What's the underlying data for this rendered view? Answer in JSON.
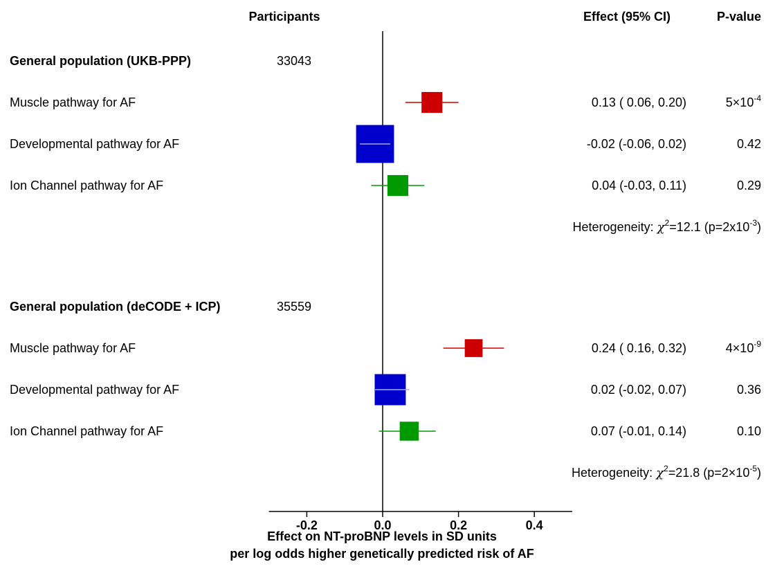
{
  "chart_data": {
    "type": "forest",
    "header": {
      "participants": "Participants",
      "effect": "Effect (95% CI)",
      "pvalue": "P-value"
    },
    "groups": [
      {
        "name": "General population (UKB-PPP)",
        "participants": "33043",
        "rows": [
          {
            "label": "Muscle pathway for AF",
            "estimate": 0.13,
            "lower": 0.06,
            "upper": 0.2,
            "effect_text": "0.13 ( 0.06, 0.20)",
            "p_base": "5×10",
            "p_exp": "-4",
            "color": "#cc0000",
            "box": 0.055
          },
          {
            "label": "Developmental pathway for AF",
            "estimate": -0.02,
            "lower": -0.06,
            "upper": 0.02,
            "effect_text": "-0.02 (-0.06, 0.02)",
            "p_base": "0.42",
            "p_exp": "",
            "color": "#0000cc",
            "box": 0.1
          },
          {
            "label": "Ion Channel pathway for AF",
            "estimate": 0.04,
            "lower": -0.03,
            "upper": 0.11,
            "effect_text": "0.04 (-0.03, 0.11)",
            "p_base": "0.29",
            "p_exp": "",
            "color": "#009900",
            "box": 0.055
          }
        ],
        "heterogeneity": {
          "prefix": "Heterogeneity: ",
          "chi": "χ",
          "sup": "2",
          "stat": "=12.1 (p=2x10",
          "p_exp": "-3",
          "suffix": ")"
        }
      },
      {
        "name": "General population (deCODE + ICP)",
        "participants": "35559",
        "rows": [
          {
            "label": "Muscle pathway for AF",
            "estimate": 0.24,
            "lower": 0.16,
            "upper": 0.32,
            "effect_text": "0.24 ( 0.16, 0.32)",
            "p_base": "4×10",
            "p_exp": "-9",
            "color": "#cc0000",
            "box": 0.047
          },
          {
            "label": "Developmental pathway for AF",
            "estimate": 0.02,
            "lower": -0.02,
            "upper": 0.07,
            "effect_text": "0.02 (-0.02, 0.07)",
            "p_base": "0.36",
            "p_exp": "",
            "color": "#0000cc",
            "box": 0.082
          },
          {
            "label": "Ion Channel pathway for AF",
            "estimate": 0.07,
            "lower": -0.01,
            "upper": 0.14,
            "effect_text": "0.07 (-0.01, 0.14)",
            "p_base": "0.10",
            "p_exp": "",
            "color": "#009900",
            "box": 0.05
          }
        ],
        "heterogeneity": {
          "prefix": "Heterogeneity: ",
          "chi": "χ",
          "sup": "2",
          "stat": "=21.8 (p=2×10",
          "p_exp": "-5",
          "suffix": ")"
        }
      }
    ],
    "xaxis": {
      "ticks": [
        -0.2,
        0.0,
        0.2,
        0.4
      ],
      "tick_labels": [
        "-0.2",
        "0.0",
        "0.2",
        "0.4"
      ],
      "xlim": [
        -0.3,
        0.5
      ],
      "label_line1": "Effect on NT-proBNP levels in SD units",
      "label_line2": "per log odds higher genetically predicted risk of AF"
    },
    "reference_line": 0
  }
}
